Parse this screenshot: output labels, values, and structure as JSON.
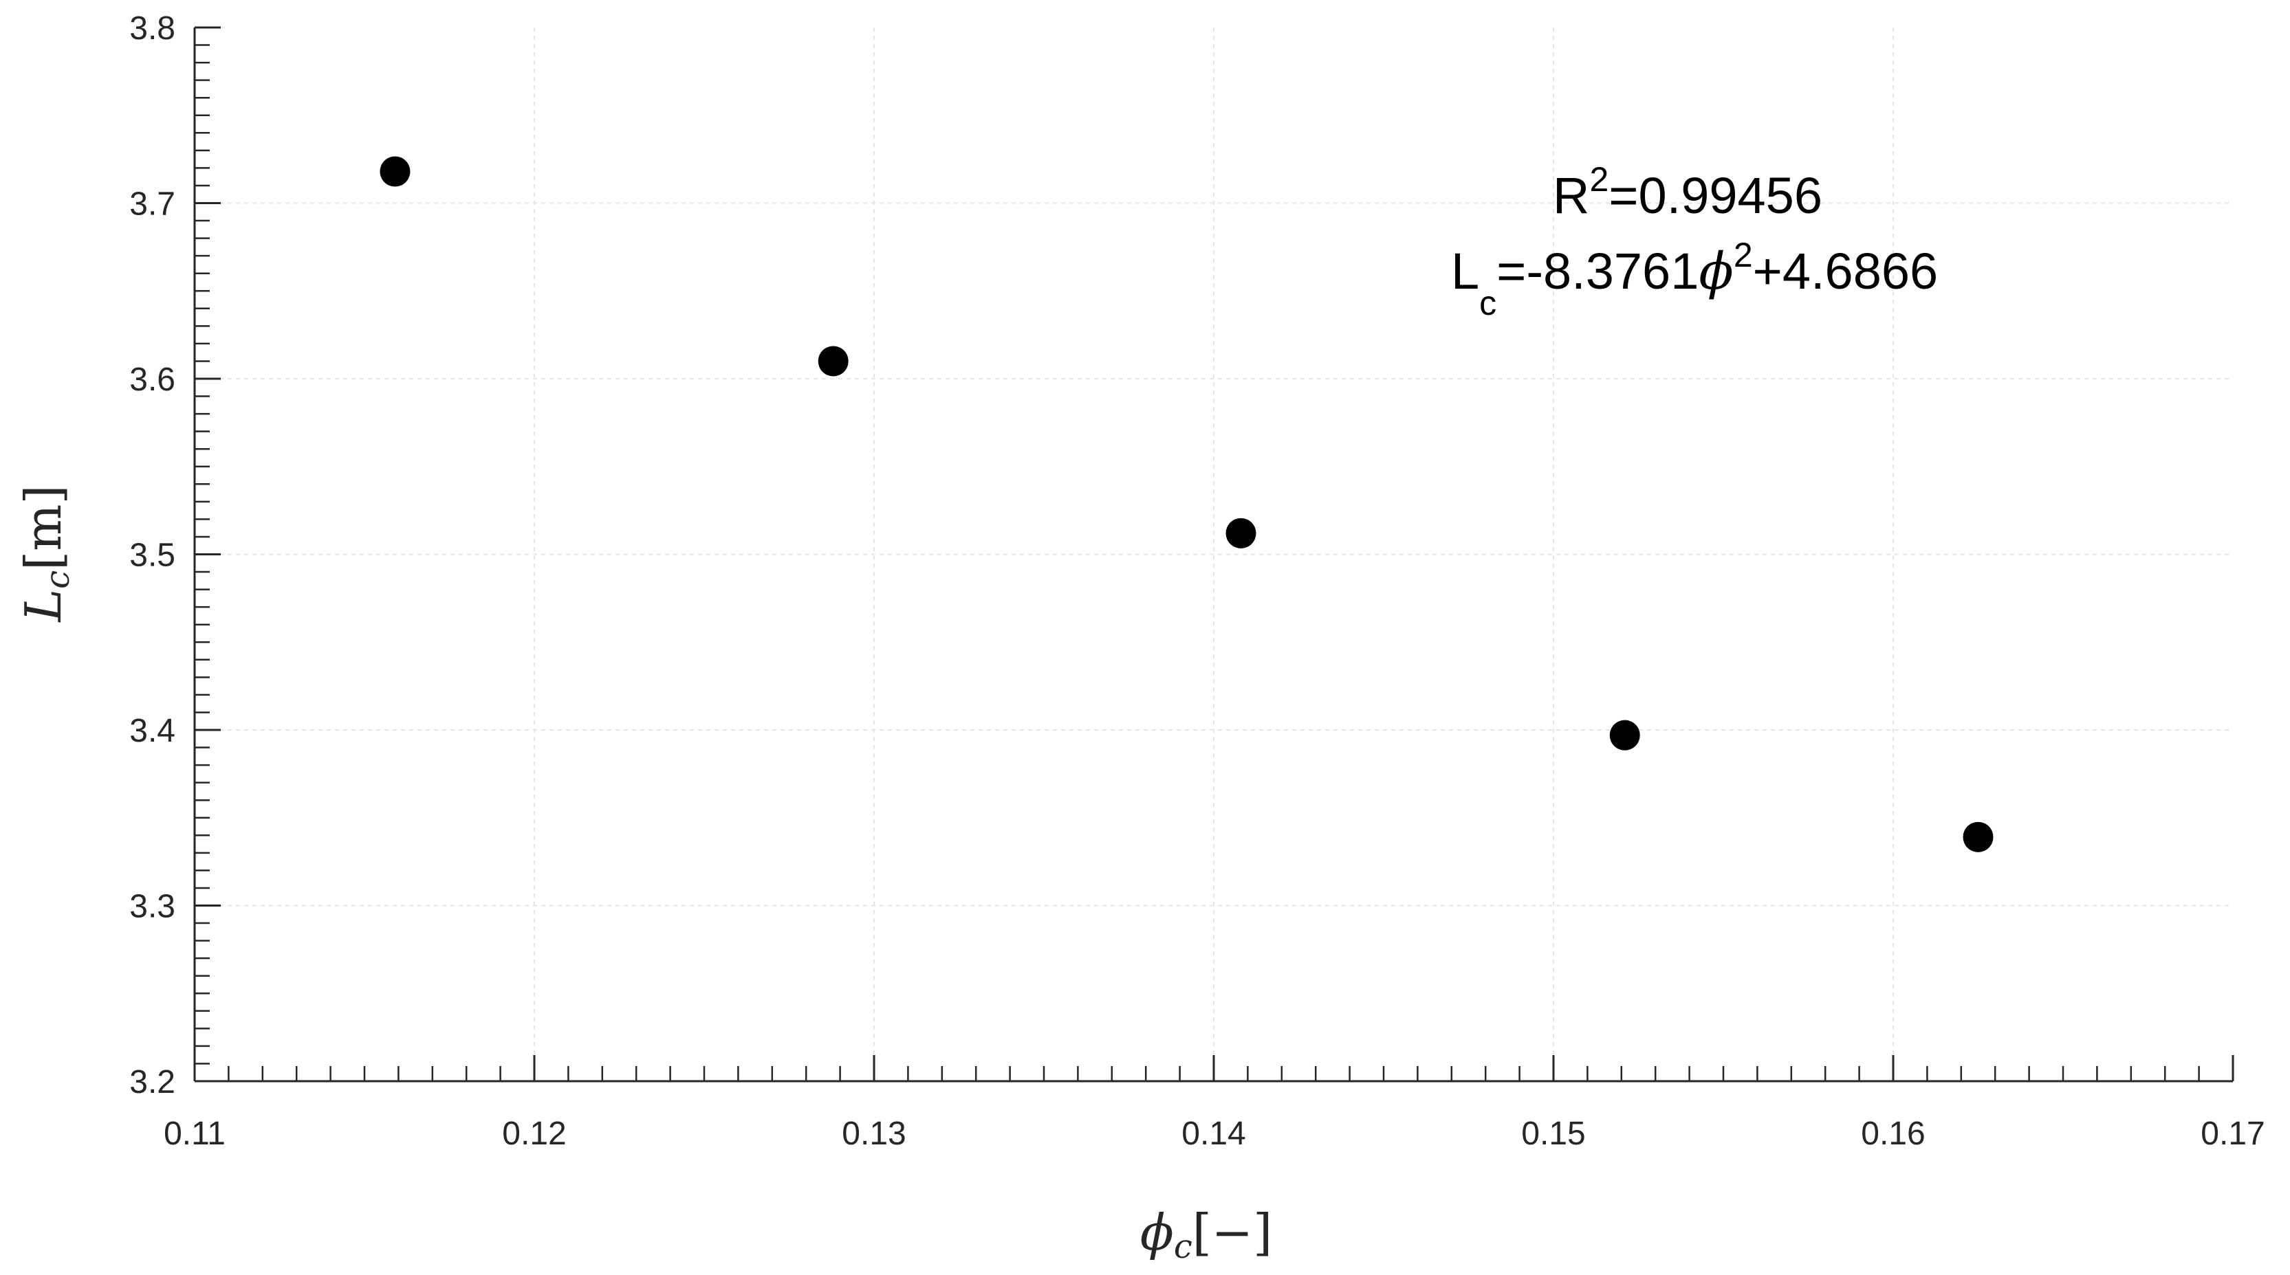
{
  "chart_data": {
    "type": "scatter",
    "title": "",
    "xlabel": {
      "base": "ϕ",
      "sub": "c",
      "unit": "[−]"
    },
    "ylabel": {
      "base": "L",
      "sub": "c",
      "unit": "[m]"
    },
    "xlim": [
      0.11,
      0.17
    ],
    "ylim": [
      3.2,
      3.8
    ],
    "xticks": [
      0.11,
      0.12,
      0.13,
      0.14,
      0.15,
      0.16,
      0.17
    ],
    "xtick_labels": [
      "0.11",
      "0.12",
      "0.13",
      "0.14",
      "0.15",
      "0.16",
      "0.17"
    ],
    "yticks": [
      3.2,
      3.3,
      3.4,
      3.5,
      3.6,
      3.7,
      3.8
    ],
    "ytick_labels": [
      "3.2",
      "3.3",
      "3.4",
      "3.5",
      "3.6",
      "3.7",
      "3.8"
    ],
    "x_minor_step": 0.001,
    "y_minor_step": 0.01,
    "grid": true,
    "series": [
      {
        "kind": "scatter",
        "color": "#000000",
        "points": [
          {
            "x": 0.1159,
            "y": 3.718
          },
          {
            "x": 0.1288,
            "y": 3.61
          },
          {
            "x": 0.1408,
            "y": 3.512
          },
          {
            "x": 0.1521,
            "y": 3.397
          },
          {
            "x": 0.1625,
            "y": 3.339
          }
        ]
      },
      {
        "kind": "fit",
        "color": "#e60000",
        "a": -8.3761,
        "b": 4.6866,
        "x_range": [
          0.11,
          0.17
        ]
      }
    ],
    "annotations": {
      "r2": {
        "label": "R",
        "sup": "2",
        "value": "=0.99456"
      },
      "equation": {
        "lhs": "L",
        "lhs_sub": "c",
        "mid": "=-8.3761",
        "phi": "ϕ",
        "sup": "2",
        "rhs": "+4.6866"
      }
    }
  }
}
